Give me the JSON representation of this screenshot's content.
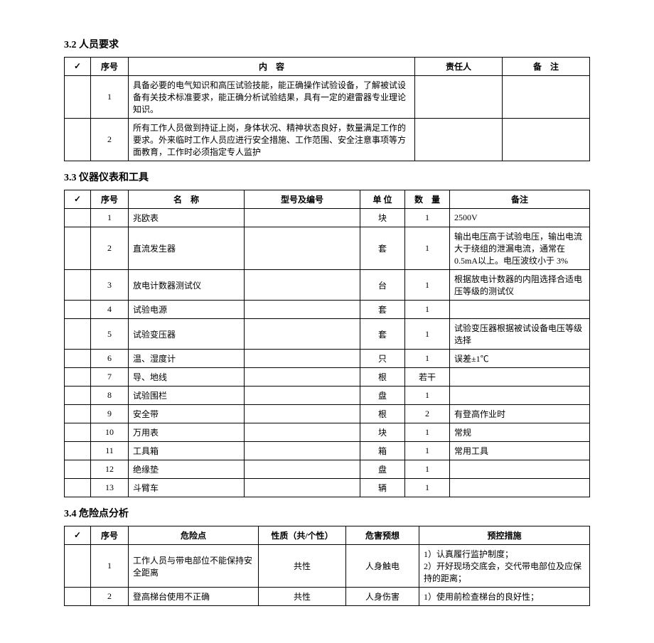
{
  "sections": {
    "s32": {
      "title": "3.2 人员要求"
    },
    "s33": {
      "title": "3.3 仪器仪表和工具"
    },
    "s34": {
      "title": "3.4 危险点分析"
    }
  },
  "t32": {
    "headers": {
      "check": "✓",
      "seq": "序号",
      "content": "内　容",
      "resp": "责任人",
      "remark": "备　注"
    },
    "rows": [
      {
        "seq": "1",
        "content": "具备必要的电气知识和高压试验技能，能正确操作试验设备，了解被试设备有关技术标准要求，能正确分析试验结果，具有一定的避雷器专业理论知识。",
        "resp": "",
        "remark": ""
      },
      {
        "seq": "2",
        "content": "所有工作人员做到持证上岗，身体状况、精神状态良好，数量满足工作的要求。外来临时工作人员应进行安全措施、工作范围、安全注意事项等方面教育，工作时必须指定专人监护",
        "resp": "",
        "remark": ""
      }
    ]
  },
  "t33": {
    "headers": {
      "check": "✓",
      "seq": "序号",
      "name": "名　称",
      "model": "型号及编号",
      "unit": "单 位",
      "qty": "数　量",
      "remark": "备注"
    },
    "rows": [
      {
        "seq": "1",
        "name": "兆欧表",
        "model": "",
        "unit": "块",
        "qty": "1",
        "remark": "2500V"
      },
      {
        "seq": "2",
        "name": "直流发生器",
        "model": "",
        "unit": "套",
        "qty": "1",
        "remark": "输出电压高于试验电压，输出电流大于绕组的泄漏电流，通常在 0.5mA以上。电压波纹小于 3%"
      },
      {
        "seq": "3",
        "name": "放电计数器测试仪",
        "model": "",
        "unit": "台",
        "qty": "1",
        "remark": "根据放电计数器的内阻选择合适电压等级的测试仪"
      },
      {
        "seq": "4",
        "name": "试验电源",
        "model": "",
        "unit": "套",
        "qty": "1",
        "remark": ""
      },
      {
        "seq": "5",
        "name": "试验变压器",
        "model": "",
        "unit": "套",
        "qty": "1",
        "remark": "试验变压器根据被试设备电压等级选择"
      },
      {
        "seq": "6",
        "name": "温、湿度计",
        "model": "",
        "unit": "只",
        "qty": "1",
        "remark": "误差±1℃"
      },
      {
        "seq": "7",
        "name": "导、地线",
        "model": "",
        "unit": "根",
        "qty": "若干",
        "remark": ""
      },
      {
        "seq": "8",
        "name": "试验围栏",
        "model": "",
        "unit": "盘",
        "qty": "1",
        "remark": ""
      },
      {
        "seq": "9",
        "name": "安全带",
        "model": "",
        "unit": "根",
        "qty": "2",
        "remark": "有登高作业时"
      },
      {
        "seq": "10",
        "name": "万用表",
        "model": "",
        "unit": "块",
        "qty": "1",
        "remark": "常规"
      },
      {
        "seq": "11",
        "name": "工具箱",
        "model": "",
        "unit": "箱",
        "qty": "1",
        "remark": "常用工具"
      },
      {
        "seq": "12",
        "name": "绝缘垫",
        "model": "",
        "unit": "盘",
        "qty": "1",
        "remark": ""
      },
      {
        "seq": "13",
        "name": "斗臂车",
        "model": "",
        "unit": "辆",
        "qty": "1",
        "remark": ""
      }
    ]
  },
  "t34": {
    "headers": {
      "check": "✓",
      "seq": "序号",
      "hazard": "危险点",
      "nature": "性质（共/个性）",
      "predict": "危害预想",
      "measure": "预控措施"
    },
    "rows": [
      {
        "seq": "1",
        "hazard": "工作人员与带电部位不能保持安全距离",
        "nature": "共性",
        "predict": "人身触电",
        "measure": "1）认真履行监护制度；\n2）开好现场交底会，交代带电部位及应保持的距离；"
      },
      {
        "seq": "2",
        "hazard": "登高梯台使用不正确",
        "nature": "共性",
        "predict": "人身伤害",
        "measure": "1）使用前检查梯台的良好性；"
      }
    ]
  }
}
